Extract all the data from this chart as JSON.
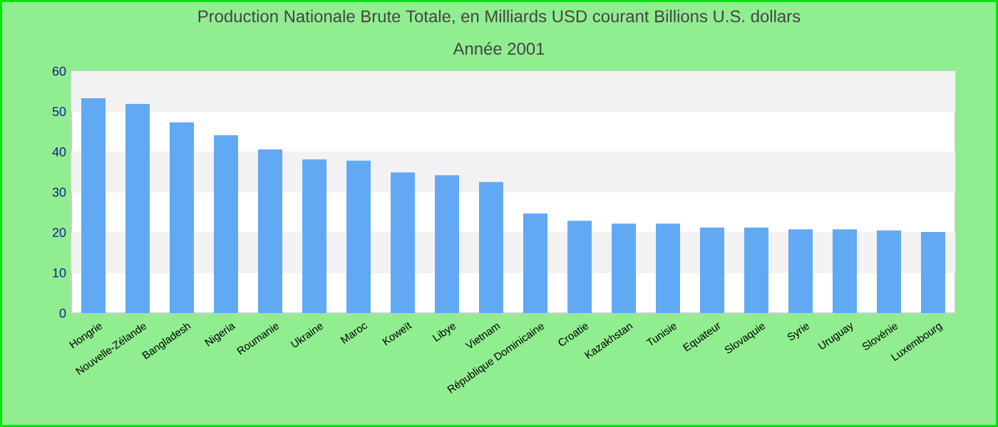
{
  "chart_data": {
    "type": "bar",
    "title": "Production Nationale Brute Totale, en Milliards USD courant Billions U.S. dollars",
    "subtitle": "Année 2001",
    "categories": [
      "Hongrie",
      "Nouvelle-Zélande",
      "Bangladesh",
      "Nigeria",
      "Roumanie",
      "Ukraine",
      "Maroc",
      "Koweït",
      "Libye",
      "Vietnam",
      "République Dominicaine",
      "Croatie",
      "Kazakhstan",
      "Tunisie",
      "Equateur",
      "Slovaquie",
      "Syrie",
      "Uruguay",
      "Slovénie",
      "Luxembourg"
    ],
    "values": [
      53.3,
      51.9,
      47.3,
      44.1,
      40.6,
      38.1,
      37.8,
      34.9,
      34.2,
      32.5,
      24.7,
      22.9,
      22.2,
      22.2,
      21.2,
      21.2,
      20.8,
      20.8,
      20.5,
      20.1
    ],
    "color": "#62a9f4",
    "ylim": [
      0,
      60
    ],
    "yticks": [
      0,
      10,
      20,
      30,
      40,
      50,
      60
    ],
    "grid": "y"
  }
}
